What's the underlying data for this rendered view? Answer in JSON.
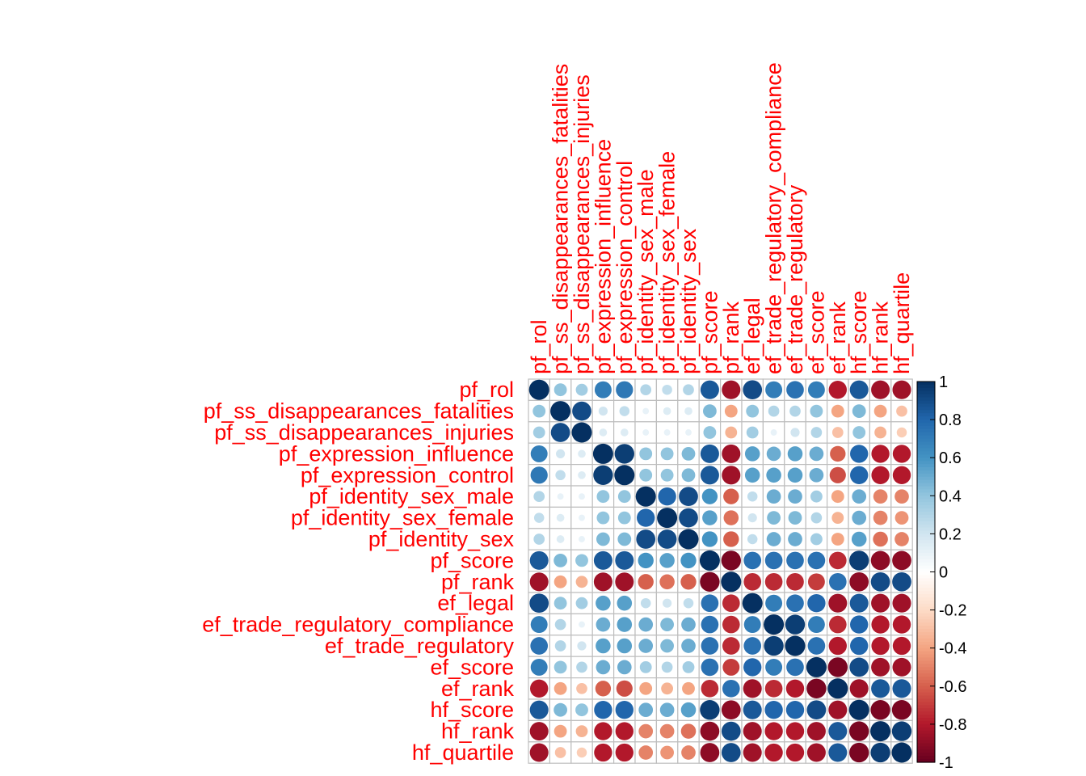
{
  "chart_data": {
    "type": "heatmap",
    "method": "circle",
    "title": "",
    "label_color": "#FF0000",
    "grid_color": "#BEBEBE",
    "variables": [
      "pf_rol",
      "pf_ss_disappearances_fatalities",
      "pf_ss_disappearances_injuries",
      "pf_expression_influence",
      "pf_expression_control",
      "pf_identity_sex_male",
      "pf_identity_sex_female",
      "pf_identity_sex",
      "pf_score",
      "pf_rank",
      "ef_legal",
      "ef_trade_regulatory_compliance",
      "ef_trade_regulatory",
      "ef_score",
      "ef_rank",
      "hf_score",
      "hf_rank",
      "hf_quartile"
    ],
    "matrix": [
      [
        1.0,
        0.4,
        0.35,
        0.7,
        0.72,
        0.3,
        0.25,
        0.3,
        0.85,
        -0.85,
        0.9,
        0.7,
        0.75,
        0.7,
        -0.8,
        0.85,
        -0.85,
        -0.85
      ],
      [
        0.4,
        1.0,
        0.9,
        0.2,
        0.25,
        0.1,
        0.15,
        0.15,
        0.45,
        -0.4,
        0.4,
        0.3,
        0.3,
        0.4,
        -0.4,
        0.45,
        -0.4,
        -0.3
      ],
      [
        0.35,
        0.9,
        1.0,
        0.15,
        0.15,
        0.1,
        0.1,
        0.1,
        0.4,
        -0.35,
        0.35,
        0.1,
        0.2,
        0.3,
        -0.3,
        0.4,
        -0.35,
        -0.25
      ],
      [
        0.7,
        0.2,
        0.15,
        1.0,
        0.95,
        0.4,
        0.4,
        0.45,
        0.85,
        -0.85,
        0.55,
        0.5,
        0.55,
        0.5,
        -0.6,
        0.8,
        -0.8,
        -0.8
      ],
      [
        0.72,
        0.25,
        0.15,
        0.95,
        1.0,
        0.4,
        0.4,
        0.45,
        0.85,
        -0.85,
        0.55,
        0.55,
        0.55,
        0.5,
        -0.65,
        0.8,
        -0.8,
        -0.8
      ],
      [
        0.3,
        0.1,
        0.1,
        0.4,
        0.4,
        1.0,
        0.8,
        0.9,
        0.6,
        -0.6,
        0.25,
        0.5,
        0.5,
        0.35,
        -0.4,
        0.5,
        -0.5,
        -0.5
      ],
      [
        0.25,
        0.15,
        0.1,
        0.4,
        0.4,
        0.8,
        1.0,
        0.9,
        0.55,
        -0.55,
        0.2,
        0.45,
        0.45,
        0.3,
        -0.35,
        0.5,
        -0.5,
        -0.45
      ],
      [
        0.3,
        0.15,
        0.1,
        0.45,
        0.45,
        0.9,
        0.9,
        1.0,
        0.6,
        -0.6,
        0.25,
        0.5,
        0.5,
        0.35,
        -0.4,
        0.55,
        -0.55,
        -0.5
      ],
      [
        0.85,
        0.45,
        0.4,
        0.85,
        0.85,
        0.6,
        0.55,
        0.6,
        1.0,
        -0.95,
        0.75,
        0.75,
        0.75,
        0.75,
        -0.75,
        0.95,
        -0.9,
        -0.9
      ],
      [
        -0.85,
        -0.4,
        -0.35,
        -0.85,
        -0.85,
        -0.6,
        -0.55,
        -0.6,
        -0.95,
        1.0,
        -0.75,
        -0.75,
        -0.75,
        -0.7,
        0.75,
        -0.9,
        0.9,
        0.9
      ],
      [
        0.9,
        0.4,
        0.35,
        0.55,
        0.55,
        0.25,
        0.2,
        0.25,
        0.75,
        -0.75,
        1.0,
        0.7,
        0.75,
        0.8,
        -0.85,
        0.85,
        -0.85,
        -0.85
      ],
      [
        0.7,
        0.3,
        0.1,
        0.5,
        0.55,
        0.5,
        0.45,
        0.5,
        0.75,
        -0.75,
        0.7,
        1.0,
        0.95,
        0.7,
        -0.75,
        0.8,
        -0.8,
        -0.8
      ],
      [
        0.75,
        0.3,
        0.2,
        0.55,
        0.55,
        0.5,
        0.45,
        0.5,
        0.75,
        -0.75,
        0.75,
        0.95,
        1.0,
        0.75,
        -0.8,
        0.8,
        -0.8,
        -0.8
      ],
      [
        0.7,
        0.4,
        0.3,
        0.5,
        0.5,
        0.35,
        0.3,
        0.35,
        0.75,
        -0.7,
        0.8,
        0.7,
        0.75,
        1.0,
        -0.95,
        0.9,
        -0.85,
        -0.85
      ],
      [
        -0.8,
        -0.4,
        -0.3,
        -0.6,
        -0.65,
        -0.4,
        -0.35,
        -0.4,
        -0.75,
        0.75,
        -0.85,
        -0.75,
        -0.8,
        -0.95,
        1.0,
        -0.85,
        0.85,
        0.85
      ],
      [
        0.85,
        0.45,
        0.4,
        0.8,
        0.8,
        0.5,
        0.5,
        0.55,
        0.95,
        -0.9,
        0.85,
        0.8,
        0.8,
        0.9,
        -0.85,
        1.0,
        -0.95,
        -0.95
      ],
      [
        -0.85,
        -0.4,
        -0.35,
        -0.8,
        -0.8,
        -0.5,
        -0.5,
        -0.55,
        -0.9,
        0.9,
        -0.85,
        -0.8,
        -0.8,
        -0.85,
        0.85,
        -0.95,
        1.0,
        0.95
      ],
      [
        -0.85,
        -0.3,
        -0.25,
        -0.8,
        -0.8,
        -0.5,
        -0.45,
        -0.5,
        -0.9,
        0.9,
        -0.85,
        -0.8,
        -0.8,
        -0.85,
        0.85,
        -0.95,
        0.95,
        1.0
      ]
    ],
    "colorbar": {
      "range": [
        -1,
        1
      ],
      "ticks": [
        "1",
        "0.8",
        "0.6",
        "0.4",
        "0.2",
        "0",
        "-0.2",
        "-0.4",
        "-0.6",
        "-0.8",
        "-1"
      ],
      "tick_values": [
        1,
        0.8,
        0.6,
        0.4,
        0.2,
        0,
        -0.2,
        -0.4,
        -0.6,
        -0.8,
        -1
      ],
      "palette": [
        "#67001F",
        "#B2182B",
        "#D6604D",
        "#F4A582",
        "#FDDBC7",
        "#FFFFFF",
        "#D1E5F0",
        "#92C5DE",
        "#4393C3",
        "#2166AC",
        "#053061"
      ]
    }
  }
}
